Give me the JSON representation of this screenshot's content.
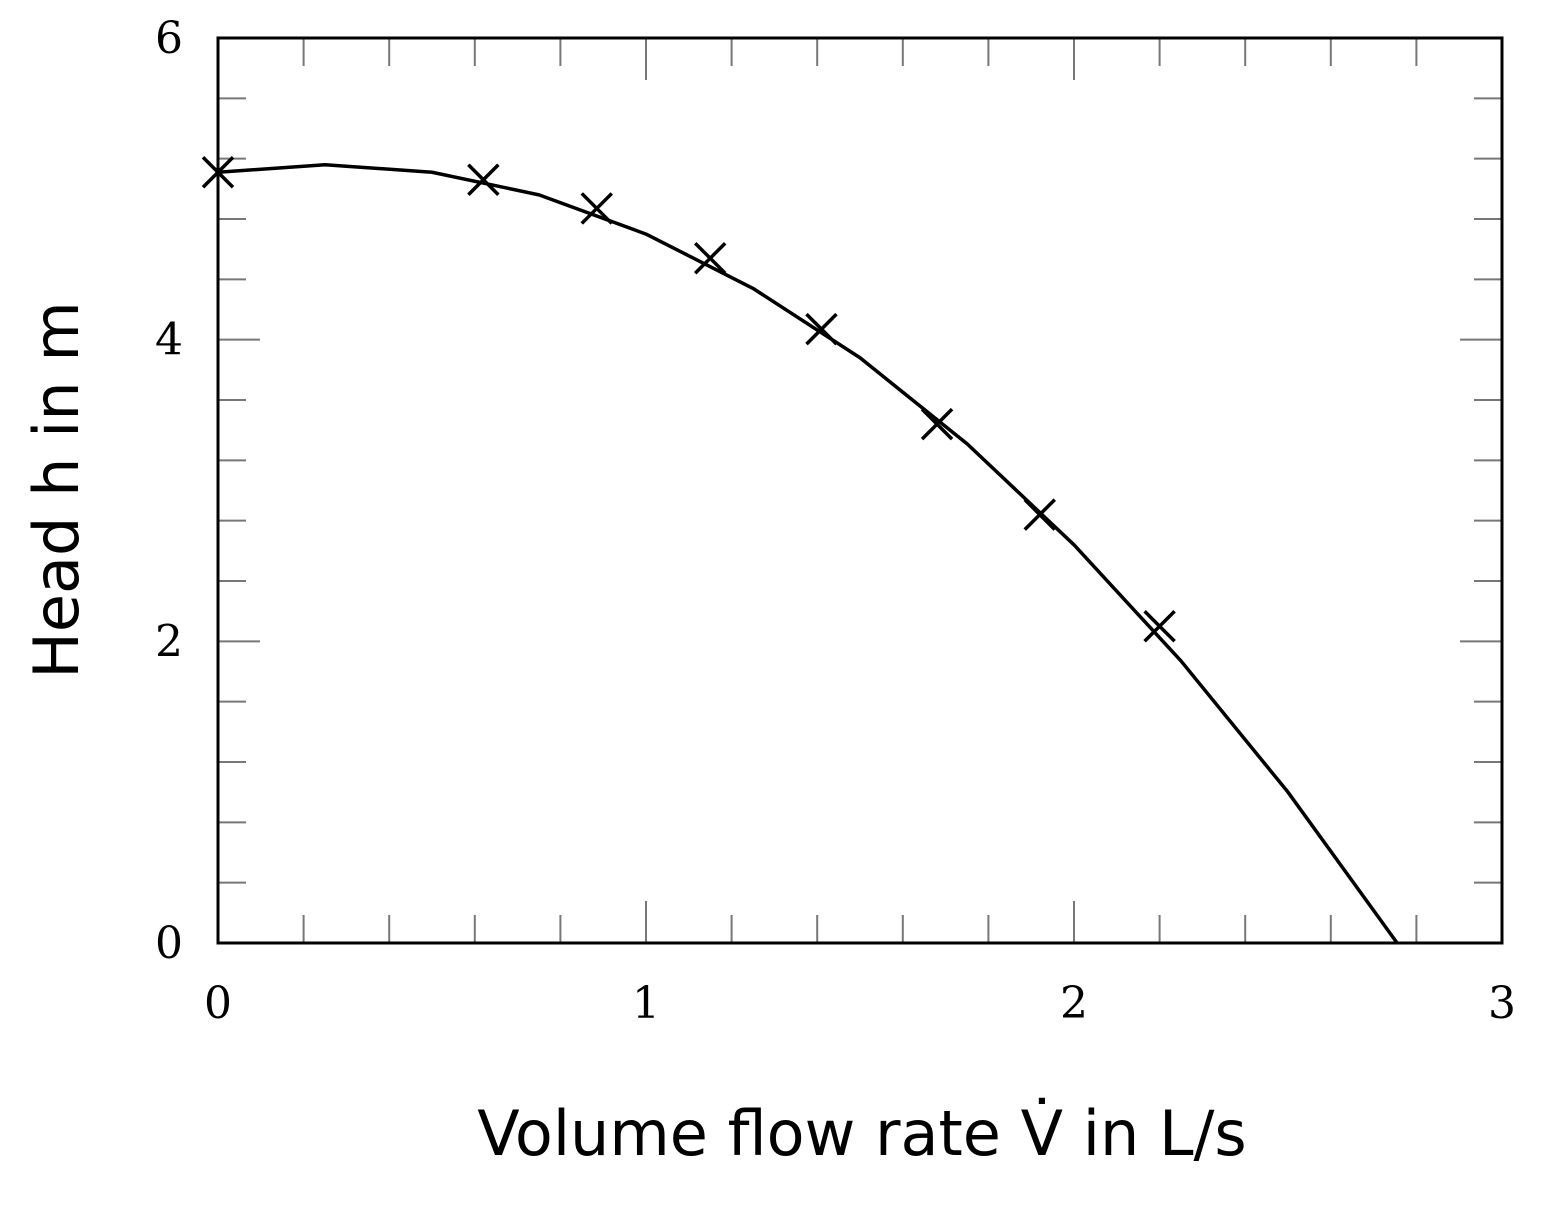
{
  "chart_data": {
    "type": "scatter",
    "xlabel": "Volume flow rate V̇ in L/s",
    "ylabel": "Head h in m",
    "xlim": [
      0,
      3
    ],
    "ylim": [
      0,
      6
    ],
    "xticks": [
      0,
      1,
      2,
      3
    ],
    "yticks": [
      0,
      2,
      4,
      6
    ],
    "xticks_minor": [
      0.2,
      0.4,
      0.6,
      0.8,
      1.2,
      1.4,
      1.6,
      1.8,
      2.2,
      2.4,
      2.6,
      2.8
    ],
    "yticks_minor": [
      0.4,
      0.8,
      1.2,
      1.6,
      2.4,
      2.8,
      3.2,
      3.6,
      4.4,
      4.8,
      5.2,
      5.6
    ],
    "series": [
      {
        "color": "#000000",
        "marker": "x",
        "x": [
          0,
          0.62,
          0.885,
          1.15,
          1.41,
          1.68,
          1.92,
          2.2
        ],
        "values": [
          5.11,
          5.06,
          4.87,
          4.54,
          4.07,
          3.44,
          2.84,
          2.1
        ]
      },
      {
        "color": "#000000",
        "marker": "line",
        "x": [
          0,
          0.25,
          0.5,
          0.75,
          1.0,
          1.25,
          1.5,
          1.75,
          2.0,
          2.25,
          2.5,
          2.755
        ],
        "values": [
          5.11,
          5.16,
          5.11,
          4.96,
          4.7,
          4.34,
          3.88,
          3.31,
          2.64,
          1.87,
          1.0,
          0.0
        ]
      }
    ]
  }
}
